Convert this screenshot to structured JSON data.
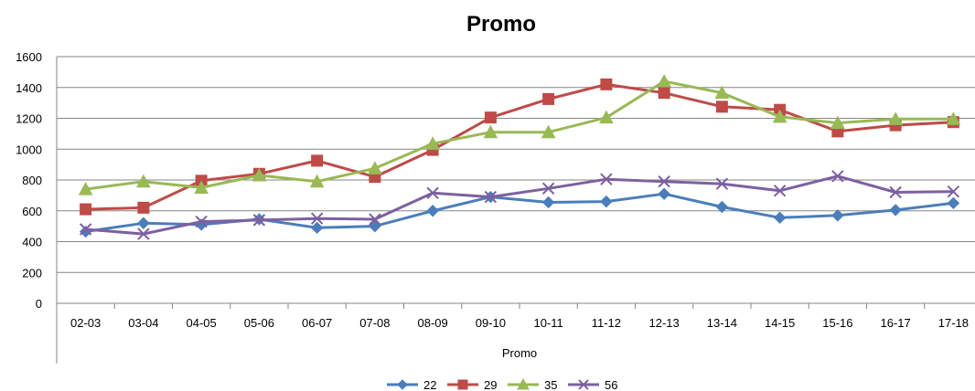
{
  "chart_data": {
    "type": "line",
    "title": "Promo",
    "xlabel": "Promo",
    "ylabel": "",
    "categories": [
      "02-03",
      "03-04",
      "04-05",
      "05-06",
      "06-07",
      "07-08",
      "08-09",
      "09-10",
      "10-11",
      "11-12",
      "12-13",
      "13-14",
      "14-15",
      "15-16",
      "16-17",
      "17-18"
    ],
    "ylim": [
      0,
      1600
    ],
    "yticks": [
      0,
      200,
      400,
      600,
      800,
      1000,
      1200,
      1400,
      1600
    ],
    "grid": true,
    "legend_position": "bottom",
    "series": [
      {
        "name": "22",
        "color": "#4a7ebb",
        "marker": "diamond",
        "values": [
          465,
          520,
          510,
          545,
          490,
          500,
          600,
          690,
          655,
          660,
          710,
          625,
          555,
          570,
          605,
          650
        ]
      },
      {
        "name": "29",
        "color": "#be4b48",
        "marker": "square",
        "values": [
          610,
          620,
          795,
          840,
          925,
          820,
          995,
          1205,
          1325,
          1420,
          1365,
          1275,
          1255,
          1115,
          1155,
          1175
        ]
      },
      {
        "name": "35",
        "color": "#98b954",
        "marker": "triangle",
        "values": [
          740,
          790,
          750,
          830,
          790,
          875,
          1035,
          1110,
          1110,
          1205,
          1440,
          1365,
          1210,
          1170,
          1195,
          1195
        ]
      },
      {
        "name": "56",
        "color": "#7d60a0",
        "marker": "x",
        "values": [
          480,
          450,
          530,
          540,
          550,
          545,
          715,
          690,
          745,
          805,
          790,
          775,
          730,
          825,
          720,
          725
        ]
      }
    ]
  }
}
